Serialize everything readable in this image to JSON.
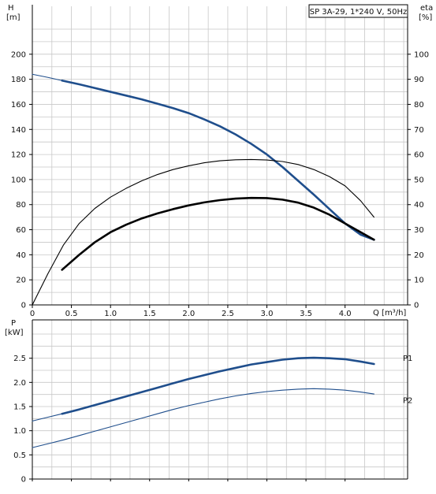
{
  "chart_data": [
    {
      "type": "line",
      "title": "SP 3A-29, 1*240 V, 50Hz",
      "xlabel": "Q [m³/h]",
      "ylabel_left": {
        "line1": "H",
        "line2": "[m]"
      },
      "ylabel_right": {
        "line1": "eta",
        "line2": "[%]"
      },
      "xlim": [
        0,
        4.8
      ],
      "xticks": [
        0,
        0.5,
        1.0,
        1.5,
        2.0,
        2.5,
        3.0,
        3.5,
        4.0
      ],
      "xtick_labels": [
        "0",
        "0.5",
        "1.0",
        "1.5",
        "2.0",
        "2.5",
        "3.0",
        "3.5",
        "4.0"
      ],
      "ylim_left": [
        0,
        220
      ],
      "yticks_left": [
        0,
        20,
        40,
        60,
        80,
        100,
        120,
        140,
        160,
        180,
        200
      ],
      "ylim_right": [
        0,
        110
      ],
      "yticks_right": [
        0,
        10,
        20,
        30,
        40,
        50,
        60,
        70,
        80,
        90,
        100
      ],
      "grid": true,
      "series": [
        {
          "axis": "left",
          "color": "#1f4e8c",
          "stroke": "thin",
          "x": [
            0,
            0.2,
            0.38
          ],
          "y": [
            184,
            181.5,
            179
          ]
        },
        {
          "axis": "left",
          "color": "#1f4e8c",
          "stroke": "thick",
          "x": [
            0.38,
            0.6,
            0.8,
            1.0,
            1.2,
            1.4,
            1.6,
            1.8,
            2.0,
            2.2,
            2.4,
            2.6,
            2.8,
            3.0,
            3.2,
            3.4,
            3.6,
            3.8,
            4.0,
            4.2,
            4.37
          ],
          "y": [
            179,
            176,
            173,
            170,
            167,
            164,
            160.5,
            157,
            153,
            148,
            142.5,
            136,
            128.5,
            120,
            110,
            99,
            88,
            76.5,
            65,
            56,
            52
          ]
        },
        {
          "axis": "right",
          "color": "#000000",
          "stroke": "thin",
          "x": [
            0,
            0.2,
            0.4,
            0.6,
            0.8,
            1.0,
            1.2,
            1.4,
            1.6,
            1.8,
            2.0,
            2.2,
            2.4,
            2.6,
            2.8,
            3.0,
            3.2,
            3.4,
            3.6,
            3.8,
            4.0,
            4.2,
            4.37
          ],
          "y": [
            0,
            12.5,
            24,
            32.5,
            38.5,
            43,
            46.5,
            49.5,
            52,
            54,
            55.5,
            56.7,
            57.5,
            57.9,
            58,
            57.8,
            57.2,
            56,
            54,
            51.2,
            47.5,
            41.5,
            35
          ]
        },
        {
          "axis": "right",
          "color": "#000000",
          "stroke": "thick",
          "x": [
            0.38,
            0.6,
            0.8,
            1.0,
            1.2,
            1.4,
            1.6,
            1.8,
            2.0,
            2.2,
            2.4,
            2.6,
            2.8,
            3.0,
            3.2,
            3.4,
            3.6,
            3.8,
            4.0,
            4.2,
            4.37
          ],
          "y": [
            14,
            20,
            25,
            29,
            32,
            34.5,
            36.5,
            38.2,
            39.7,
            40.9,
            41.8,
            42.4,
            42.7,
            42.6,
            42,
            40.8,
            38.8,
            36,
            32.5,
            29,
            26
          ]
        }
      ]
    },
    {
      "type": "line",
      "ylabel_left": {
        "line1": "P",
        "line2": "[kW]"
      },
      "xlim": [
        0,
        4.8
      ],
      "xticks": [
        0,
        0.5,
        1.0,
        1.5,
        2.0,
        2.5,
        3.0,
        3.5,
        4.0
      ],
      "ylim": [
        0,
        3.0
      ],
      "yticks": [
        0,
        0.5,
        1.0,
        1.5,
        2.0,
        2.5
      ],
      "ytick_labels": [
        "0",
        "0.5",
        "1.0",
        "1.5",
        "2.0",
        "2.5"
      ],
      "grid": true,
      "series": [
        {
          "name": "P1",
          "color": "#1f4e8c",
          "stroke": "thick",
          "x": [
            0.38,
            0.6,
            0.8,
            1.0,
            1.2,
            1.4,
            1.6,
            1.8,
            2.0,
            2.2,
            2.4,
            2.6,
            2.8,
            3.0,
            3.2,
            3.4,
            3.6,
            3.8,
            4.0,
            4.2,
            4.37
          ],
          "y": [
            1.35,
            1.44,
            1.53,
            1.62,
            1.71,
            1.8,
            1.89,
            1.98,
            2.07,
            2.15,
            2.23,
            2.3,
            2.37,
            2.42,
            2.47,
            2.5,
            2.51,
            2.5,
            2.48,
            2.43,
            2.38
          ]
        },
        {
          "color": "#1f4e8c",
          "stroke": "thin",
          "x": [
            0,
            0.2,
            0.38
          ],
          "y": [
            1.2,
            1.28,
            1.35
          ]
        },
        {
          "name": "P2",
          "color": "#1f4e8c",
          "stroke": "thin",
          "x": [
            0,
            0.2,
            0.4,
            0.6,
            0.8,
            1.0,
            1.2,
            1.4,
            1.6,
            1.8,
            2.0,
            2.2,
            2.4,
            2.6,
            2.8,
            3.0,
            3.2,
            3.4,
            3.6,
            3.8,
            4.0,
            4.2,
            4.37
          ],
          "y": [
            0.65,
            0.73,
            0.81,
            0.9,
            0.99,
            1.08,
            1.17,
            1.26,
            1.35,
            1.44,
            1.52,
            1.59,
            1.66,
            1.72,
            1.77,
            1.81,
            1.84,
            1.86,
            1.87,
            1.86,
            1.84,
            1.8,
            1.76
          ]
        }
      ],
      "labels": [
        {
          "text": "P1",
          "y": 2.5
        },
        {
          "text": "P2",
          "y": 1.63
        }
      ]
    }
  ]
}
